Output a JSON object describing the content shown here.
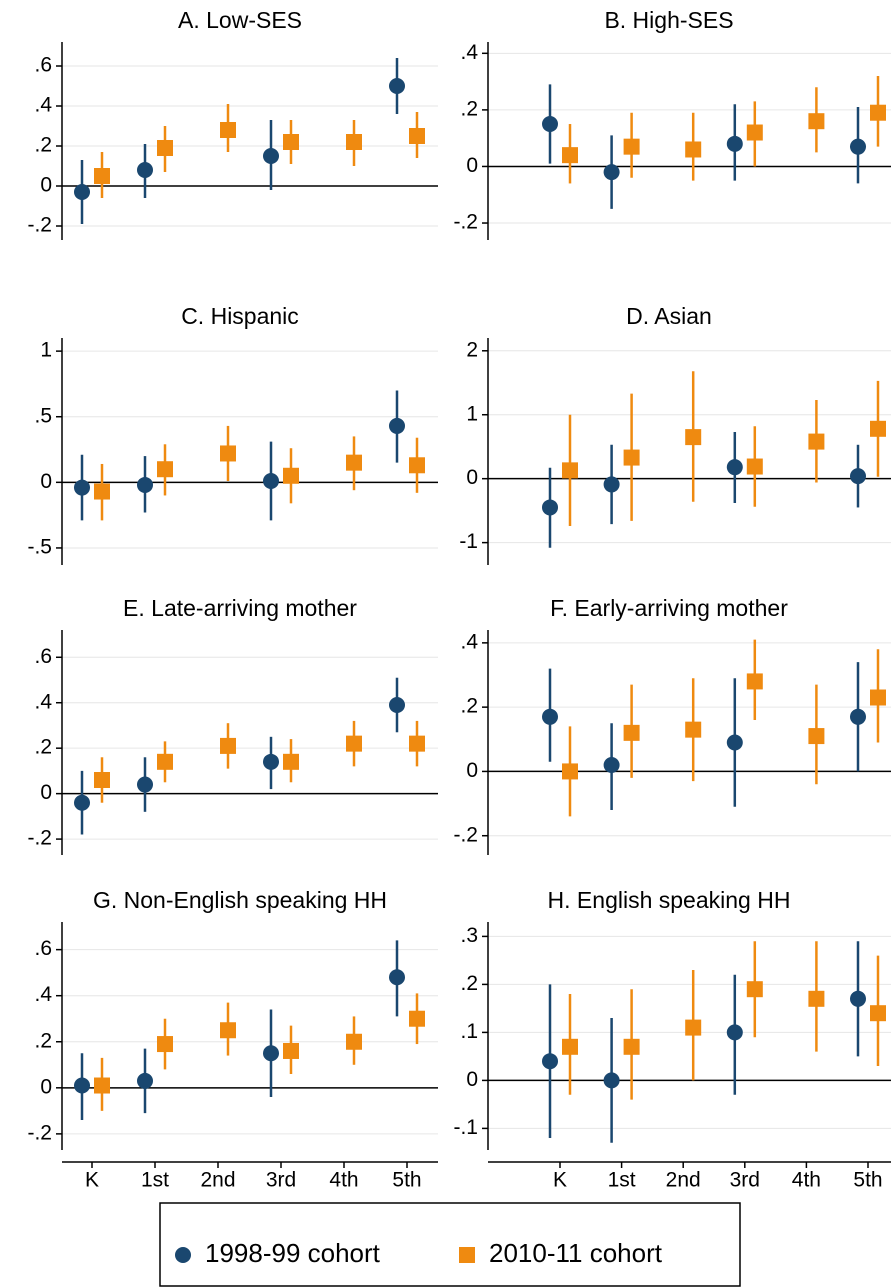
{
  "chart_data": [
    {
      "type": "scatter",
      "title": "A. Low-SES",
      "ylim": [
        -0.27,
        0.72
      ],
      "yticks": [
        {
          "value": -0.2,
          "label": "-.2"
        },
        0,
        {
          "value": 0.2,
          "label": ".2"
        },
        {
          "value": 0.4,
          "label": ".4"
        },
        {
          "value": 0.6,
          "label": ".6"
        }
      ],
      "series": [
        {
          "values": [
            -0.03,
            0.08,
            null,
            0.15,
            null,
            0.5
          ],
          "lower": [
            -0.19,
            -0.06,
            null,
            -0.02,
            null,
            0.36
          ],
          "upper": [
            0.13,
            0.21,
            null,
            0.33,
            null,
            0.64
          ]
        },
        {
          "values": [
            0.05,
            0.19,
            0.28,
            0.22,
            0.22,
            0.25
          ],
          "lower": [
            -0.06,
            0.07,
            0.17,
            0.11,
            0.1,
            0.14
          ],
          "upper": [
            0.17,
            0.3,
            0.41,
            0.33,
            0.33,
            0.37
          ]
        }
      ]
    },
    {
      "type": "scatter",
      "title": "B. High-SES",
      "ylim": [
        -0.26,
        0.44
      ],
      "yticks": [
        {
          "value": -0.2,
          "label": "-.2"
        },
        0,
        {
          "value": 0.2,
          "label": ".2"
        },
        {
          "value": 0.4,
          "label": ".4"
        }
      ],
      "series": [
        {
          "values": [
            0.15,
            -0.02,
            null,
            0.08,
            null,
            0.07
          ],
          "lower": [
            0.01,
            -0.15,
            null,
            -0.05,
            null,
            -0.06
          ],
          "upper": [
            0.29,
            0.11,
            null,
            0.22,
            null,
            0.21
          ]
        },
        {
          "values": [
            0.04,
            0.07,
            0.06,
            0.12,
            0.16,
            0.19
          ],
          "lower": [
            -0.06,
            -0.04,
            -0.05,
            0.0,
            0.05,
            0.07
          ],
          "upper": [
            0.15,
            0.19,
            0.19,
            0.23,
            0.28,
            0.32
          ]
        }
      ]
    },
    {
      "type": "scatter",
      "title": "C. Hispanic",
      "ylim": [
        -0.63,
        1.1
      ],
      "yticks": [
        {
          "value": -0.5,
          "label": "-.5"
        },
        0,
        {
          "value": 0.5,
          "label": ".5"
        },
        1
      ],
      "series": [
        {
          "values": [
            -0.04,
            -0.02,
            null,
            0.01,
            null,
            0.43
          ],
          "lower": [
            -0.29,
            -0.23,
            null,
            -0.29,
            null,
            0.15
          ],
          "upper": [
            0.21,
            0.2,
            null,
            0.31,
            null,
            0.7
          ]
        },
        {
          "values": [
            -0.07,
            0.1,
            0.22,
            0.05,
            0.15,
            0.13
          ],
          "lower": [
            -0.29,
            -0.1,
            0.01,
            -0.16,
            -0.06,
            -0.08
          ],
          "upper": [
            0.14,
            0.29,
            0.43,
            0.26,
            0.35,
            0.34
          ]
        }
      ]
    },
    {
      "type": "scatter",
      "title": "D. Asian",
      "ylim": [
        -1.35,
        2.2
      ],
      "yticks": [
        -1,
        0,
        1,
        2
      ],
      "series": [
        {
          "values": [
            -0.45,
            -0.09,
            null,
            0.18,
            null,
            0.04
          ],
          "lower": [
            -1.08,
            -0.71,
            null,
            -0.38,
            null,
            -0.45
          ],
          "upper": [
            0.17,
            0.53,
            null,
            0.73,
            null,
            0.53
          ]
        },
        {
          "values": [
            0.13,
            0.33,
            0.65,
            0.19,
            0.58,
            0.78
          ],
          "lower": [
            -0.74,
            -0.66,
            -0.36,
            -0.44,
            -0.06,
            0.03
          ],
          "upper": [
            1.0,
            1.33,
            1.68,
            0.82,
            1.23,
            1.53
          ]
        }
      ]
    },
    {
      "type": "scatter",
      "title": "E. Late-arriving mother",
      "ylim": [
        -0.27,
        0.72
      ],
      "yticks": [
        {
          "value": -0.2,
          "label": "-.2"
        },
        0,
        {
          "value": 0.2,
          "label": ".2"
        },
        {
          "value": 0.4,
          "label": ".4"
        },
        {
          "value": 0.6,
          "label": ".6"
        }
      ],
      "series": [
        {
          "values": [
            -0.04,
            0.04,
            null,
            0.14,
            null,
            0.39
          ],
          "lower": [
            -0.18,
            -0.08,
            null,
            0.02,
            null,
            0.27
          ],
          "upper": [
            0.1,
            0.16,
            null,
            0.25,
            null,
            0.51
          ]
        },
        {
          "values": [
            0.06,
            0.14,
            0.21,
            0.14,
            0.22,
            0.22
          ],
          "lower": [
            -0.04,
            0.05,
            0.11,
            0.05,
            0.12,
            0.12
          ],
          "upper": [
            0.16,
            0.23,
            0.31,
            0.24,
            0.32,
            0.32
          ]
        }
      ]
    },
    {
      "type": "scatter",
      "title": "F. Early-arriving mother",
      "ylim": [
        -0.26,
        0.44
      ],
      "yticks": [
        {
          "value": -0.2,
          "label": "-.2"
        },
        0,
        {
          "value": 0.2,
          "label": ".2"
        },
        {
          "value": 0.4,
          "label": ".4"
        }
      ],
      "series": [
        {
          "values": [
            0.17,
            0.02,
            null,
            0.09,
            null,
            0.17
          ],
          "lower": [
            0.03,
            -0.12,
            null,
            -0.11,
            null,
            0.0
          ],
          "upper": [
            0.32,
            0.15,
            null,
            0.29,
            null,
            0.34
          ]
        },
        {
          "values": [
            0.0,
            0.12,
            0.13,
            0.28,
            0.11,
            0.23
          ],
          "lower": [
            -0.14,
            -0.02,
            -0.03,
            0.16,
            -0.04,
            0.09
          ],
          "upper": [
            0.14,
            0.27,
            0.29,
            0.41,
            0.27,
            0.38
          ]
        }
      ]
    },
    {
      "type": "scatter",
      "title": "G. Non-English speaking HH",
      "ylim": [
        -0.27,
        0.72
      ],
      "yticks": [
        {
          "value": -0.2,
          "label": "-.2"
        },
        0,
        {
          "value": 0.2,
          "label": ".2"
        },
        {
          "value": 0.4,
          "label": ".4"
        },
        {
          "value": 0.6,
          "label": ".6"
        }
      ],
      "categories": [
        "K",
        "1st",
        "2nd",
        "3rd",
        "4th",
        "5th"
      ],
      "series": [
        {
          "values": [
            0.01,
            0.03,
            null,
            0.15,
            null,
            0.48
          ],
          "lower": [
            -0.14,
            -0.11,
            null,
            -0.04,
            null,
            0.31
          ],
          "upper": [
            0.15,
            0.17,
            null,
            0.34,
            null,
            0.64
          ]
        },
        {
          "values": [
            0.01,
            0.19,
            0.25,
            0.16,
            0.2,
            0.3
          ],
          "lower": [
            -0.1,
            0.08,
            0.14,
            0.06,
            0.1,
            0.19
          ],
          "upper": [
            0.13,
            0.3,
            0.37,
            0.27,
            0.31,
            0.41
          ]
        }
      ]
    },
    {
      "type": "scatter",
      "title": "H. English speaking HH",
      "ylim": [
        -0.145,
        0.33
      ],
      "yticks": [
        {
          "value": -0.1,
          "label": "-.1"
        },
        0,
        {
          "value": 0.1,
          "label": ".1"
        },
        {
          "value": 0.2,
          "label": ".2"
        },
        {
          "value": 0.3,
          "label": ".3"
        }
      ],
      "categories": [
        "K",
        "1st",
        "2nd",
        "3rd",
        "4th",
        "5th"
      ],
      "series": [
        {
          "values": [
            0.04,
            0.0,
            null,
            0.1,
            null,
            0.17
          ],
          "lower": [
            -0.12,
            -0.13,
            null,
            -0.03,
            null,
            0.05
          ],
          "upper": [
            0.2,
            0.13,
            null,
            0.22,
            null,
            0.29
          ]
        },
        {
          "values": [
            0.07,
            0.07,
            0.11,
            0.19,
            0.17,
            0.14
          ],
          "lower": [
            -0.03,
            -0.04,
            0.0,
            0.09,
            0.06,
            0.03
          ],
          "upper": [
            0.18,
            0.19,
            0.23,
            0.29,
            0.29,
            0.26
          ]
        }
      ]
    }
  ],
  "legend": [
    {
      "name": "1998-99 cohort",
      "marker": "circle",
      "color": "#1a476f"
    },
    {
      "name": "2010-11 cohort",
      "marker": "square",
      "color": "#ef8a10"
    }
  ]
}
